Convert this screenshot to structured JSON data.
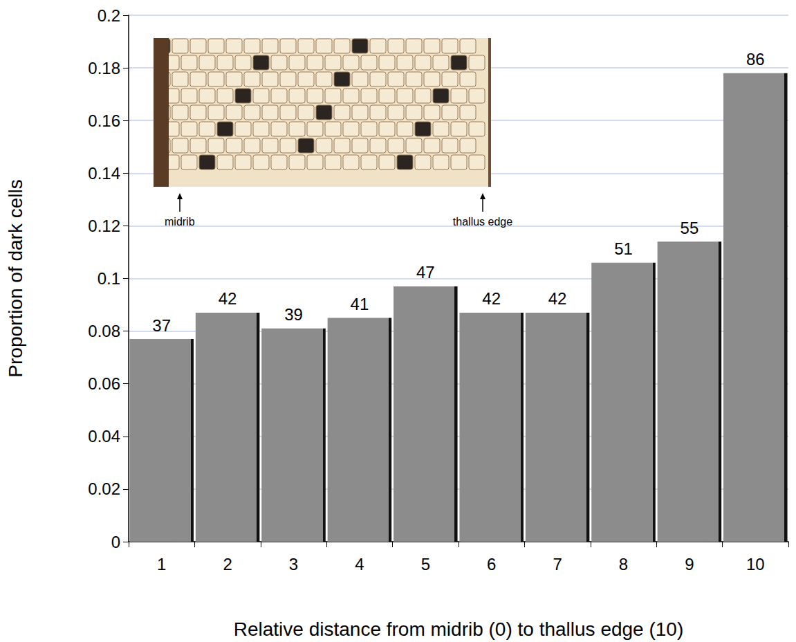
{
  "chart_data": {
    "type": "bar",
    "categories": [
      "1",
      "2",
      "3",
      "4",
      "5",
      "6",
      "7",
      "8",
      "9",
      "10"
    ],
    "values": [
      0.077,
      0.087,
      0.081,
      0.085,
      0.097,
      0.087,
      0.087,
      0.106,
      0.114,
      0.178
    ],
    "counts": [
      37,
      42,
      39,
      41,
      47,
      42,
      42,
      51,
      55,
      86
    ],
    "color": "#8c8c8c",
    "ylim": [
      0,
      0.2
    ],
    "yticks": [
      0,
      0.02,
      0.04,
      0.06,
      0.08,
      0.1,
      0.12,
      0.14,
      0.16,
      0.18,
      0.2
    ],
    "grid": true,
    "xlabel": "Relative distance from midrib (0) to thallus edge (10)",
    "ylabel": "Proportion of dark cells",
    "annotations": [
      "midrib",
      "thallus edge"
    ]
  }
}
